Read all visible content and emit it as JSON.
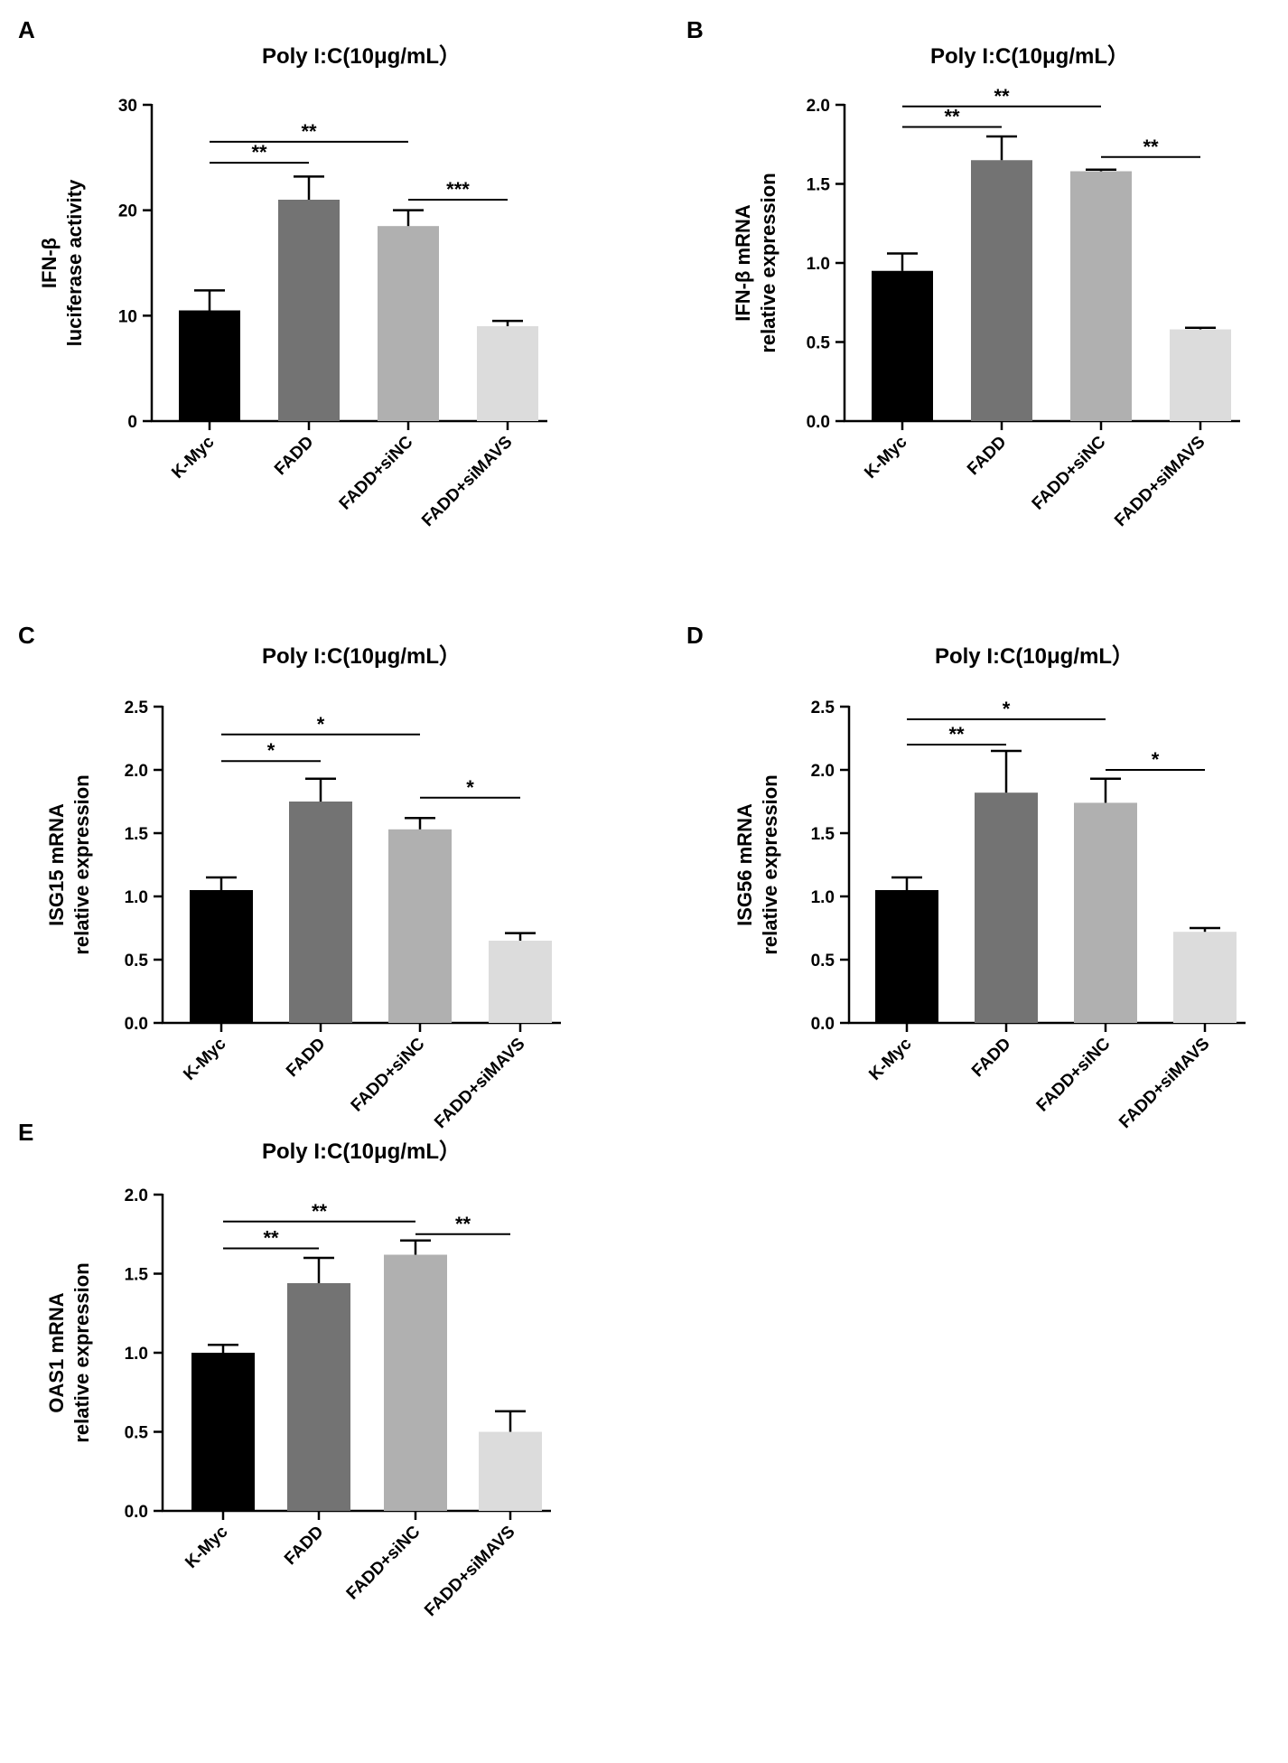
{
  "chart_data": [
    {
      "panel": "A",
      "type": "bar",
      "title": "Poly I:C(10μg/mL）",
      "ylabel_lines": [
        "IFN-β",
        "luciferase activity"
      ],
      "xlabel": "",
      "categories": [
        "K-Myc",
        "FADD",
        "FADD+siNC",
        "FADD+siMAVS"
      ],
      "values": [
        10.5,
        21.0,
        18.5,
        9.0
      ],
      "errors": [
        1.9,
        2.2,
        1.5,
        0.5
      ],
      "colors": [
        "#000000",
        "#737373",
        "#b0b0b0",
        "#dcdcdc"
      ],
      "ylim": [
        0,
        30
      ],
      "yticks": [
        0,
        10,
        20,
        30
      ],
      "ytick_labels": [
        "0",
        "10",
        "20",
        "30"
      ],
      "significance": [
        {
          "from": 0,
          "to": 1,
          "label": "**",
          "y": 24.5
        },
        {
          "from": 0,
          "to": 2,
          "label": "**",
          "y": 26.5
        },
        {
          "from": 2,
          "to": 3,
          "label": "***",
          "y": 21.0
        }
      ]
    },
    {
      "panel": "B",
      "type": "bar",
      "title": "Poly I:C(10μg/mL）",
      "ylabel_lines": [
        "IFN-β mRNA",
        "relative expression"
      ],
      "xlabel": "",
      "categories": [
        "K-Myc",
        "FADD",
        "FADD+siNC",
        "FADD+siMAVS"
      ],
      "values": [
        0.95,
        1.65,
        1.58,
        0.58
      ],
      "errors": [
        0.11,
        0.15,
        0.01,
        0.01
      ],
      "colors": [
        "#000000",
        "#737373",
        "#b0b0b0",
        "#dcdcdc"
      ],
      "ylim": [
        0,
        2.0
      ],
      "yticks": [
        0,
        0.5,
        1.0,
        1.5,
        2.0
      ],
      "ytick_labels": [
        "0.0",
        "0.5",
        "1.0",
        "1.5",
        "2.0"
      ],
      "significance": [
        {
          "from": 0,
          "to": 1,
          "label": "**",
          "y": 1.86
        },
        {
          "from": 0,
          "to": 2,
          "label": "**",
          "y": 1.99
        },
        {
          "from": 2,
          "to": 3,
          "label": "**",
          "y": 1.67
        }
      ]
    },
    {
      "panel": "C",
      "type": "bar",
      "title": "Poly I:C(10μg/mL）",
      "ylabel_lines": [
        "ISG15 mRNA",
        "relative expression"
      ],
      "xlabel": "",
      "categories": [
        "K-Myc",
        "FADD",
        "FADD+siNC",
        "FADD+siMAVS"
      ],
      "values": [
        1.05,
        1.75,
        1.53,
        0.65
      ],
      "errors": [
        0.1,
        0.18,
        0.09,
        0.06
      ],
      "colors": [
        "#000000",
        "#737373",
        "#b0b0b0",
        "#dcdcdc"
      ],
      "ylim": [
        0,
        2.5
      ],
      "yticks": [
        0,
        0.5,
        1.0,
        1.5,
        2.0,
        2.5
      ],
      "ytick_labels": [
        "0.0",
        "0.5",
        "1.0",
        "1.5",
        "2.0",
        "2.5"
      ],
      "significance": [
        {
          "from": 0,
          "to": 1,
          "label": "*",
          "y": 2.07
        },
        {
          "from": 0,
          "to": 2,
          "label": "*",
          "y": 2.28
        },
        {
          "from": 2,
          "to": 3,
          "label": "*",
          "y": 1.78
        }
      ]
    },
    {
      "panel": "D",
      "type": "bar",
      "title": "Poly I:C(10μg/mL）",
      "ylabel_lines": [
        "ISG56 mRNA",
        "relative expression"
      ],
      "xlabel": "",
      "categories": [
        "K-Myc",
        "FADD",
        "FADD+siNC",
        "FADD+siMAVS"
      ],
      "values": [
        1.05,
        1.82,
        1.74,
        0.72
      ],
      "errors": [
        0.1,
        0.33,
        0.19,
        0.03
      ],
      "colors": [
        "#000000",
        "#737373",
        "#b0b0b0",
        "#dcdcdc"
      ],
      "ylim": [
        0,
        2.5
      ],
      "yticks": [
        0,
        0.5,
        1.0,
        1.5,
        2.0,
        2.5
      ],
      "ytick_labels": [
        "0.0",
        "0.5",
        "1.0",
        "1.5",
        "2.0",
        "2.5"
      ],
      "significance": [
        {
          "from": 0,
          "to": 1,
          "label": "**",
          "y": 2.2
        },
        {
          "from": 0,
          "to": 2,
          "label": "*",
          "y": 2.4
        },
        {
          "from": 2,
          "to": 3,
          "label": "*",
          "y": 2.0
        }
      ]
    },
    {
      "panel": "E",
      "type": "bar",
      "title": "Poly I:C(10μg/mL）",
      "ylabel_lines": [
        "OAS1 mRNA",
        "relative expression"
      ],
      "xlabel": "",
      "categories": [
        "K-Myc",
        "FADD",
        "FADD+siNC",
        "FADD+siMAVS"
      ],
      "values": [
        1.0,
        1.44,
        1.62,
        0.5
      ],
      "errors": [
        0.05,
        0.16,
        0.09,
        0.13
      ],
      "colors": [
        "#000000",
        "#737373",
        "#b0b0b0",
        "#dcdcdc"
      ],
      "ylim": [
        0,
        2.0
      ],
      "yticks": [
        0,
        0.5,
        1.0,
        1.5,
        2.0
      ],
      "ytick_labels": [
        "0.0",
        "0.5",
        "1.0",
        "1.5",
        "2.0"
      ],
      "significance": [
        {
          "from": 0,
          "to": 1,
          "label": "**",
          "y": 1.66
        },
        {
          "from": 0,
          "to": 2,
          "label": "**",
          "y": 1.83
        },
        {
          "from": 2,
          "to": 3,
          "label": "**",
          "y": 1.75
        }
      ]
    }
  ]
}
